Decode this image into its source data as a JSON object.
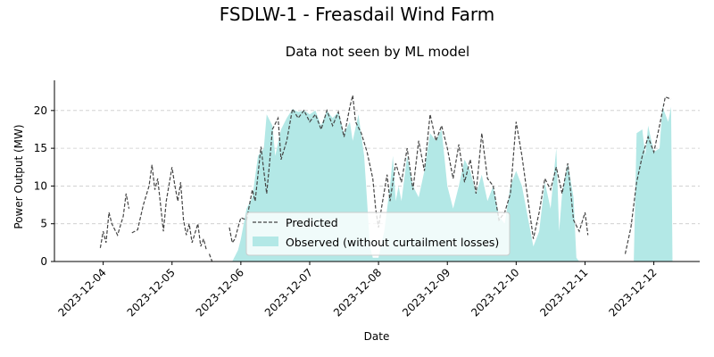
{
  "figure": {
    "suptitle": "FSDLW-1 - Freasdail Wind Farm"
  },
  "chart_data": {
    "type": "line",
    "title": "Data not seen by ML model",
    "xlabel": "Date",
    "ylabel": "Power Output (MW)",
    "x_type": "date",
    "xlim": [
      "2023-12-03T07:00",
      "2023-12-12T16:00"
    ],
    "ylim": [
      0,
      24
    ],
    "x_ticks": [
      "2023-12-04",
      "2023-12-05",
      "2023-12-06",
      "2023-12-07",
      "2023-12-08",
      "2023-12-09",
      "2023-12-10",
      "2023-12-11",
      "2023-12-12"
    ],
    "y_ticks": [
      0,
      5,
      10,
      15,
      20
    ],
    "grid": "y-dashed",
    "legend_position": "lower-center",
    "colors": {
      "predicted": "#444444",
      "observed": "#b3e8e6",
      "grid": "#cccccc"
    },
    "series": [
      {
        "name": "Predicted",
        "style": "dashed-line",
        "segments": [
          [
            [
              "2023-12-03T23:00",
              1.8
            ],
            [
              "2023-12-04T00:00",
              4.0
            ],
            [
              "2023-12-04T01:00",
              2.5
            ],
            [
              "2023-12-04T02:00",
              6.5
            ],
            [
              "2023-12-04T03:00",
              5.0
            ],
            [
              "2023-12-04T05:00",
              3.5
            ],
            [
              "2023-12-04T07:00",
              6.0
            ],
            [
              "2023-12-04T08:00",
              9.0
            ],
            [
              "2023-12-04T09:00",
              7.0
            ]
          ],
          [
            [
              "2023-12-04T10:00",
              3.8
            ],
            [
              "2023-12-04T12:00",
              4.2
            ],
            [
              "2023-12-04T14:00",
              7.5
            ],
            [
              "2023-12-04T16:00",
              10.0
            ],
            [
              "2023-12-04T17:00",
              12.8
            ],
            [
              "2023-12-04T18:00",
              9.5
            ],
            [
              "2023-12-04T19:00",
              11.0
            ],
            [
              "2023-12-04T20:00",
              7.5
            ],
            [
              "2023-12-04T21:00",
              4.0
            ],
            [
              "2023-12-04T22:00",
              8.0
            ],
            [
              "2023-12-05T00:00",
              12.5
            ],
            [
              "2023-12-05T01:00",
              10.0
            ],
            [
              "2023-12-05T02:00",
              8.0
            ],
            [
              "2023-12-05T03:00",
              10.5
            ],
            [
              "2023-12-05T04:00",
              5.5
            ],
            [
              "2023-12-05T05:00",
              3.5
            ],
            [
              "2023-12-05T06:00",
              5.0
            ],
            [
              "2023-12-05T07:00",
              2.5
            ],
            [
              "2023-12-05T09:00",
              5.0
            ],
            [
              "2023-12-05T10:00",
              2.0
            ],
            [
              "2023-12-05T11:00",
              3.0
            ],
            [
              "2023-12-05T12:00",
              1.5
            ]
          ],
          [
            [
              "2023-12-05T13:00",
              1.0
            ],
            [
              "2023-12-05T14:00",
              0.0
            ]
          ],
          [
            [
              "2023-12-05T20:00",
              4.5
            ],
            [
              "2023-12-05T21:00",
              2.5
            ],
            [
              "2023-12-05T22:00",
              3.0
            ],
            [
              "2023-12-05T23:00",
              4.5
            ],
            [
              "2023-12-06T00:00",
              5.8
            ],
            [
              "2023-12-06T02:00",
              5.5
            ],
            [
              "2023-12-06T04:00",
              9.5
            ],
            [
              "2023-12-06T05:00",
              8.0
            ],
            [
              "2023-12-06T07:00",
              15.2
            ],
            [
              "2023-12-06T08:00",
              12.0
            ],
            [
              "2023-12-06T09:00",
              9.0
            ],
            [
              "2023-12-06T10:00",
              13.0
            ],
            [
              "2023-12-06T11:00",
              17.5
            ],
            [
              "2023-12-06T13:00",
              19.0
            ],
            [
              "2023-12-06T14:00",
              13.5
            ],
            [
              "2023-12-06T16:00",
              16.0
            ],
            [
              "2023-12-06T18:00",
              20.2
            ],
            [
              "2023-12-06T20:00",
              19.0
            ],
            [
              "2023-12-06T22:00",
              20.0
            ],
            [
              "2023-12-07T00:00",
              18.5
            ],
            [
              "2023-12-07T02:00",
              19.5
            ],
            [
              "2023-12-07T04:00",
              17.5
            ],
            [
              "2023-12-07T06:00",
              20.0
            ],
            [
              "2023-12-07T08:00",
              18.0
            ],
            [
              "2023-12-07T10:00",
              19.8
            ],
            [
              "2023-12-07T12:00",
              16.5
            ],
            [
              "2023-12-07T14:00",
              20.5
            ],
            [
              "2023-12-07T15:00",
              22.0
            ],
            [
              "2023-12-07T16:00",
              18.5
            ],
            [
              "2023-12-07T18:00",
              17.0
            ],
            [
              "2023-12-07T20:00",
              14.5
            ],
            [
              "2023-12-07T22:00",
              11.0
            ],
            [
              "2023-12-07T23:00",
              7.0
            ],
            [
              "2023-12-08T00:00",
              4.5
            ],
            [
              "2023-12-08T01:00",
              7.0
            ],
            [
              "2023-12-08T03:00",
              11.5
            ],
            [
              "2023-12-08T04:00",
              8.0
            ],
            [
              "2023-12-08T06:00",
              13.0
            ],
            [
              "2023-12-08T08:00",
              10.5
            ],
            [
              "2023-12-08T10:00",
              15.0
            ],
            [
              "2023-12-08T12:00",
              9.5
            ],
            [
              "2023-12-08T14:00",
              16.0
            ],
            [
              "2023-12-08T16:00",
              12.0
            ],
            [
              "2023-12-08T18:00",
              19.5
            ],
            [
              "2023-12-08T20:00",
              16.0
            ],
            [
              "2023-12-08T22:00",
              18.0
            ],
            [
              "2023-12-09T00:00",
              15.0
            ],
            [
              "2023-12-09T02:00",
              11.0
            ],
            [
              "2023-12-09T04:00",
              15.5
            ],
            [
              "2023-12-09T06:00",
              10.5
            ],
            [
              "2023-12-09T08:00",
              13.5
            ],
            [
              "2023-12-09T10:00",
              9.0
            ],
            [
              "2023-12-09T12:00",
              17.0
            ],
            [
              "2023-12-09T14:00",
              11.0
            ],
            [
              "2023-12-09T16:00",
              10.0
            ],
            [
              "2023-12-09T18:00",
              5.5
            ],
            [
              "2023-12-09T20:00",
              6.5
            ],
            [
              "2023-12-09T22:00",
              9.0
            ],
            [
              "2023-12-10T00:00",
              18.5
            ],
            [
              "2023-12-10T02:00",
              14.0
            ],
            [
              "2023-12-10T04:00",
              8.5
            ],
            [
              "2023-12-10T06:00",
              3.0
            ],
            [
              "2023-12-10T08:00",
              6.5
            ],
            [
              "2023-12-10T10:00",
              11.0
            ],
            [
              "2023-12-10T12:00",
              9.5
            ],
            [
              "2023-12-10T14:00",
              12.5
            ],
            [
              "2023-12-10T16:00",
              9.0
            ],
            [
              "2023-12-10T18:00",
              13.0
            ],
            [
              "2023-12-10T20:00",
              5.5
            ],
            [
              "2023-12-10T22:00",
              4.0
            ],
            [
              "2023-12-11T00:00",
              6.5
            ],
            [
              "2023-12-11T01:00",
              3.5
            ]
          ],
          [
            [
              "2023-12-11T14:00",
              1.0
            ],
            [
              "2023-12-11T16:00",
              4.5
            ],
            [
              "2023-12-11T18:00",
              10.5
            ],
            [
              "2023-12-11T20:00",
              14.0
            ],
            [
              "2023-12-11T22:00",
              16.5
            ],
            [
              "2023-12-12T00:00",
              14.5
            ],
            [
              "2023-12-12T02:00",
              18.0
            ],
            [
              "2023-12-12T04:00",
              21.8
            ],
            [
              "2023-12-12T06:00",
              21.5
            ]
          ]
        ]
      },
      {
        "name": "Observed (without curtailment losses)",
        "style": "filled-area",
        "segments": [
          [
            [
              "2023-12-05T21:00",
              0
            ],
            [
              "2023-12-05T23:00",
              1.5
            ],
            [
              "2023-12-06T00:00",
              3.0
            ],
            [
              "2023-12-06T02:00",
              7.0
            ],
            [
              "2023-12-06T04:00",
              8.5
            ],
            [
              "2023-12-06T06:00",
              14.0
            ],
            [
              "2023-12-06T08:00",
              15.0
            ],
            [
              "2023-12-06T09:00",
              19.5
            ],
            [
              "2023-12-06T11:00",
              18.0
            ],
            [
              "2023-12-06T12:00",
              14.0
            ],
            [
              "2023-12-06T14:00",
              17.5
            ],
            [
              "2023-12-06T16:00",
              19.0
            ],
            [
              "2023-12-06T18:00",
              20.2
            ],
            [
              "2023-12-06T20:00",
              19.8
            ],
            [
              "2023-12-06T22:00",
              20.0
            ],
            [
              "2023-12-07T00:00",
              19.5
            ],
            [
              "2023-12-07T02:00",
              20.0
            ],
            [
              "2023-12-07T04:00",
              18.0
            ],
            [
              "2023-12-07T06:00",
              20.0
            ],
            [
              "2023-12-07T08:00",
              19.0
            ],
            [
              "2023-12-07T10:00",
              19.8
            ],
            [
              "2023-12-07T12:00",
              17.0
            ],
            [
              "2023-12-07T14:00",
              18.5
            ],
            [
              "2023-12-07T15:00",
              16.0
            ],
            [
              "2023-12-07T17:00",
              19.5
            ],
            [
              "2023-12-07T19:00",
              14.0
            ],
            [
              "2023-12-07T20:00",
              8.0
            ],
            [
              "2023-12-07T21:00",
              2.0
            ],
            [
              "2023-12-07T22:00",
              0.5
            ],
            [
              "2023-12-08T00:00",
              0.5
            ],
            [
              "2023-12-08T02:00",
              4.0
            ],
            [
              "2023-12-08T04:00",
              10.0
            ],
            [
              "2023-12-08T05:00",
              14.0
            ],
            [
              "2023-12-08T06:00",
              8.0
            ],
            [
              "2023-12-08T07:00",
              10.0
            ],
            [
              "2023-12-08T08:00",
              8.0
            ],
            [
              "2023-12-08T10:00",
              14.0
            ],
            [
              "2023-12-08T12:00",
              10.0
            ],
            [
              "2023-12-08T14:00",
              8.5
            ],
            [
              "2023-12-08T16:00",
              12.0
            ],
            [
              "2023-12-08T18:00",
              17.0
            ],
            [
              "2023-12-08T20:00",
              16.0
            ],
            [
              "2023-12-08T22:00",
              17.5
            ],
            [
              "2023-12-09T00:00",
              10.0
            ],
            [
              "2023-12-09T02:00",
              7.0
            ],
            [
              "2023-12-09T04:00",
              10.0
            ],
            [
              "2023-12-09T06:00",
              13.5
            ],
            [
              "2023-12-09T08:00",
              12.0
            ],
            [
              "2023-12-09T10:00",
              9.0
            ],
            [
              "2023-12-09T12:00",
              11.5
            ],
            [
              "2023-12-09T14:00",
              8.0
            ],
            [
              "2023-12-09T16:00",
              10.0
            ],
            [
              "2023-12-09T18:00",
              6.0
            ],
            [
              "2023-12-09T20:00",
              5.0
            ],
            [
              "2023-12-09T22:00",
              10.0
            ],
            [
              "2023-12-10T00:00",
              12.0
            ],
            [
              "2023-12-10T02:00",
              10.0
            ],
            [
              "2023-12-10T04:00",
              6.0
            ],
            [
              "2023-12-10T06:00",
              2.0
            ],
            [
              "2023-12-10T08:00",
              4.0
            ],
            [
              "2023-12-10T10:00",
              10.5
            ],
            [
              "2023-12-10T12:00",
              7.0
            ],
            [
              "2023-12-10T14:00",
              15.0
            ],
            [
              "2023-12-10T15:00",
              4.0
            ],
            [
              "2023-12-10T16:00",
              9.0
            ],
            [
              "2023-12-10T18:00",
              13.0
            ],
            [
              "2023-12-10T20:00",
              8.5
            ],
            [
              "2023-12-10T21:00",
              0.5
            ],
            [
              "2023-12-10T22:00",
              0
            ]
          ],
          [
            [
              "2023-12-11T17:00",
              0
            ],
            [
              "2023-12-11T18:00",
              17.0
            ],
            [
              "2023-12-11T20:00",
              17.5
            ],
            [
              "2023-12-11T21:00",
              14.0
            ],
            [
              "2023-12-11T22:00",
              18.0
            ],
            [
              "2023-12-12T00:00",
              14.5
            ],
            [
              "2023-12-12T02:00",
              15.0
            ],
            [
              "2023-12-12T03:00",
              20.5
            ],
            [
              "2023-12-12T05:00",
              18.5
            ],
            [
              "2023-12-12T06:00",
              20.5
            ],
            [
              "2023-12-12T06:30",
              0
            ]
          ]
        ]
      }
    ]
  }
}
